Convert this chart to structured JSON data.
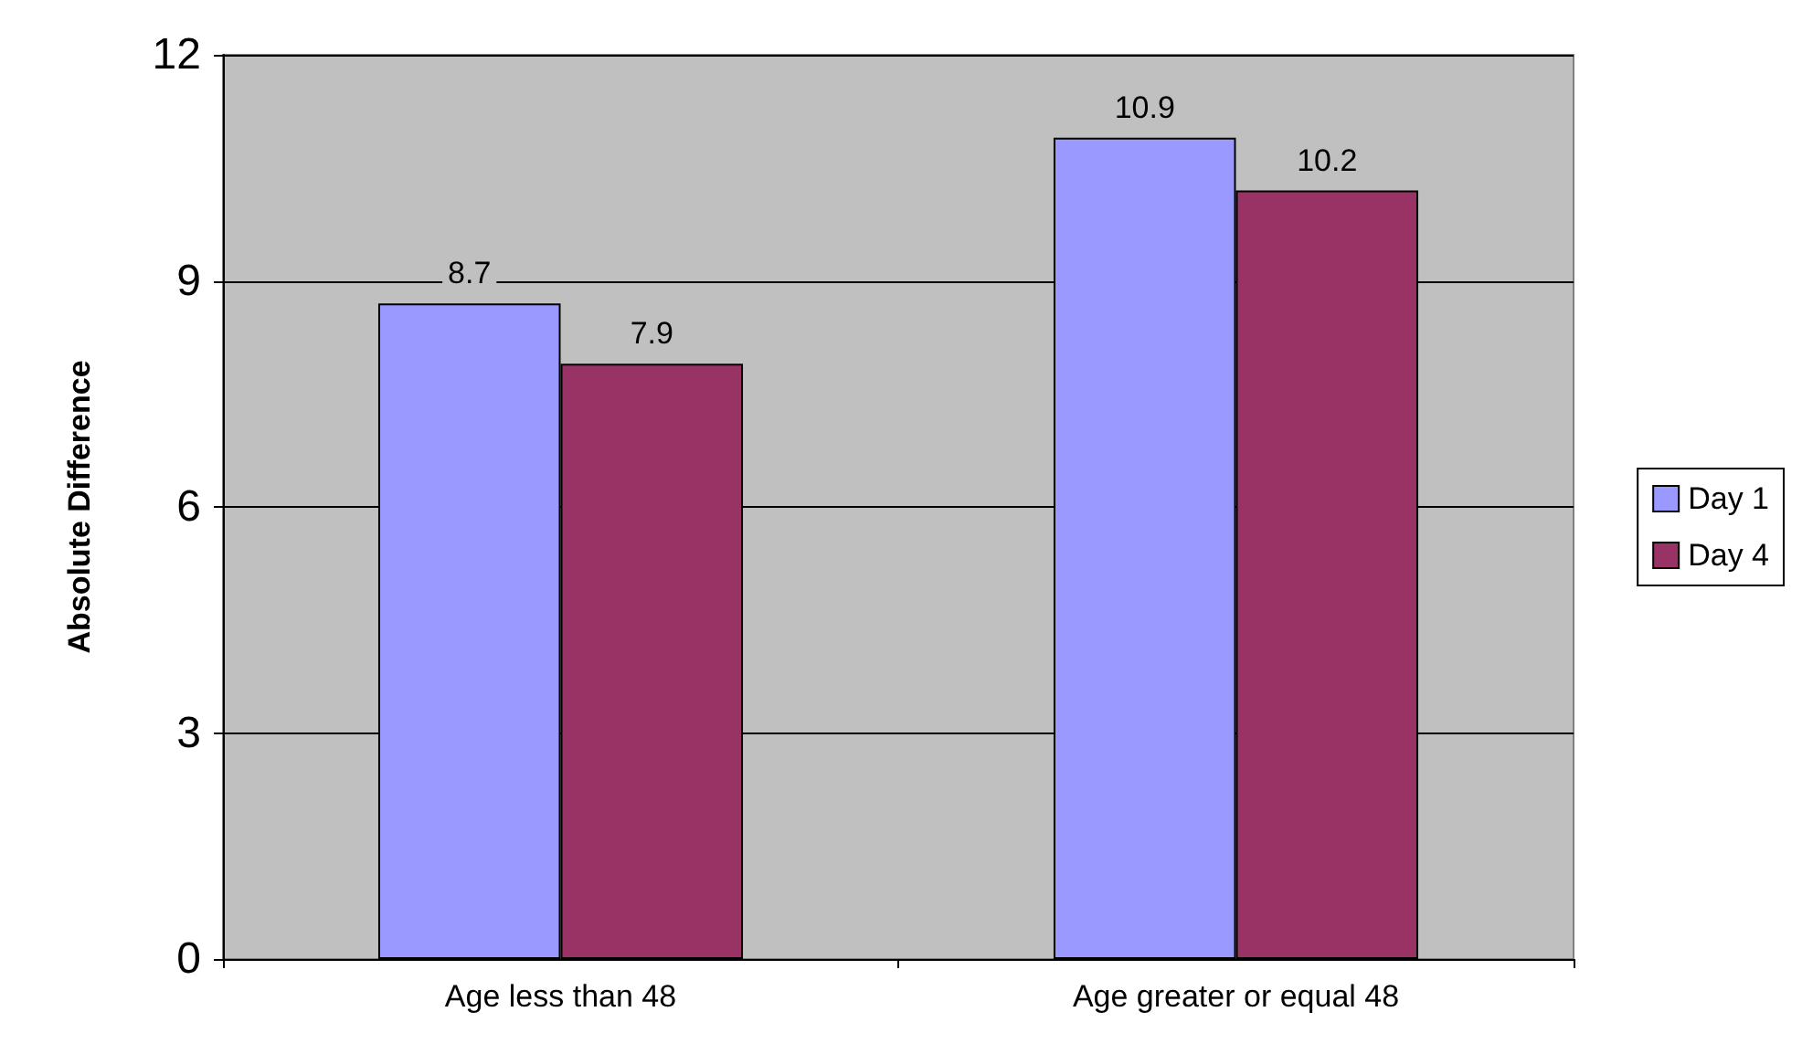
{
  "chart_data": {
    "type": "bar",
    "ylabel": "Absolute Difference",
    "categories": [
      "Age less than 48",
      "Age greater or equal 48"
    ],
    "series": [
      {
        "name": "Day 1",
        "color": "#9999ff",
        "values": [
          8.7,
          10.9
        ]
      },
      {
        "name": "Day 4",
        "color": "#993366",
        "values": [
          7.9,
          10.2
        ]
      }
    ],
    "ylim": [
      0,
      12
    ],
    "yticks": [
      0,
      3,
      6,
      9,
      12
    ],
    "grid": "y",
    "legend": "right",
    "data_labels": true
  }
}
